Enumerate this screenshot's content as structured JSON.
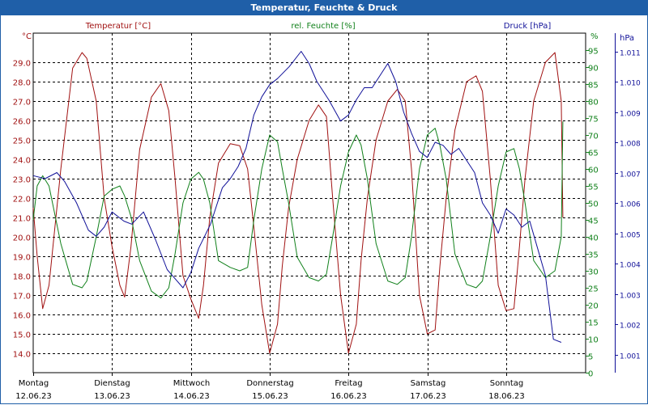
{
  "window": {
    "title": "Temperatur, Feuchte & Druck"
  },
  "colors": {
    "title_bar": "#1f5fa8",
    "temperature": "#a01010",
    "humidity": "#10801a",
    "pressure": "#101098",
    "grid": "#000000"
  },
  "chart_data": {
    "type": "line",
    "title": "Temperatur, Feuchte & Druck",
    "grid": true,
    "x_axis": {
      "start_day": "12.06.23",
      "days": [
        {
          "name": "Montag",
          "date": "12.06.23"
        },
        {
          "name": "Dienstag",
          "date": "13.06.23"
        },
        {
          "name": "Mittwoch",
          "date": "14.06.23"
        },
        {
          "name": "Donnerstag",
          "date": "15.06.23"
        },
        {
          "name": "Freitag",
          "date": "16.06.23"
        },
        {
          "name": "Samstag",
          "date": "17.06.23"
        },
        {
          "name": "Sonntag",
          "date": "18.06.23"
        }
      ]
    },
    "y_axes": {
      "temperature": {
        "label": "Temperatur [°C]",
        "unit": "°C",
        "range": [
          13.0,
          30.5
        ],
        "ticks": [
          "14.0",
          "15.0",
          "16.0",
          "17.0",
          "18.0",
          "19.0",
          "20.0",
          "21.0",
          "22.0",
          "23.0",
          "24.0",
          "25.0",
          "26.0",
          "27.0",
          "28.0",
          "29.0"
        ]
      },
      "humidity": {
        "label": "rel. Feuchte [%]",
        "unit": "%",
        "range": [
          0,
          100
        ],
        "ticks": [
          "0",
          "5",
          "10",
          "15",
          "20",
          "25",
          "30",
          "35",
          "40",
          "45",
          "50",
          "55",
          "60",
          "65",
          "70",
          "75",
          "80",
          "85",
          "90",
          "95"
        ]
      },
      "pressure": {
        "label": "Druck [hPa]",
        "unit": "hPa",
        "range": [
          1000.4,
          1011.6
        ],
        "ticks": [
          "1.001",
          "1.002",
          "1.003",
          "1.004",
          "1.005",
          "1.006",
          "1.007",
          "1.008",
          "1.009",
          "1.010",
          "1.011"
        ]
      }
    },
    "series": [
      {
        "name": "Temperatur [°C]",
        "axis": "temperature",
        "x_days": [
          0,
          0.05,
          0.12,
          0.2,
          0.35,
          0.5,
          0.62,
          0.68,
          0.8,
          0.9,
          1,
          1.1,
          1.16,
          1.24,
          1.35,
          1.5,
          1.62,
          1.72,
          1.8,
          1.9,
          2,
          2.1,
          2.16,
          2.24,
          2.35,
          2.5,
          2.62,
          2.72,
          2.8,
          2.9,
          3,
          3.1,
          3.16,
          3.24,
          3.35,
          3.5,
          3.62,
          3.72,
          3.8,
          3.9,
          4,
          4.1,
          4.16,
          4.24,
          4.35,
          4.5,
          4.62,
          4.72,
          4.8,
          4.9,
          5,
          5.1,
          5.16,
          5.24,
          5.35,
          5.5,
          5.62,
          5.7,
          5.8,
          5.9,
          6,
          6.1,
          6.17,
          6.24,
          6.35,
          6.5,
          6.62,
          6.7,
          6.72
        ],
        "values": [
          21.5,
          19.0,
          16.3,
          17.5,
          23.5,
          28.7,
          29.5,
          29.2,
          27.0,
          22.0,
          19.5,
          17.5,
          16.9,
          19.5,
          24.5,
          27.2,
          27.9,
          26.5,
          23.0,
          18.0,
          16.8,
          15.8,
          17.5,
          21.0,
          23.8,
          24.8,
          24.7,
          23.5,
          20.5,
          16.5,
          14.0,
          15.5,
          18.5,
          21.5,
          24.0,
          26.0,
          26.8,
          26.2,
          22.0,
          17.0,
          14.0,
          15.5,
          18.8,
          22.0,
          25.0,
          27.0,
          27.6,
          27.0,
          23.5,
          17.0,
          15.0,
          15.2,
          18.5,
          22.0,
          25.5,
          28.0,
          28.3,
          27.5,
          23.0,
          17.5,
          16.2,
          16.3,
          19.5,
          23.0,
          27.0,
          29.0,
          29.5,
          27.0,
          21.0
        ]
      },
      {
        "name": "rel. Feuchte [%]",
        "axis": "humidity",
        "x_days": [
          0,
          0.05,
          0.12,
          0.2,
          0.35,
          0.5,
          0.62,
          0.68,
          0.8,
          0.9,
          1,
          1.1,
          1.16,
          1.24,
          1.35,
          1.5,
          1.62,
          1.72,
          1.8,
          1.9,
          2,
          2.1,
          2.16,
          2.24,
          2.35,
          2.5,
          2.62,
          2.72,
          2.8,
          2.9,
          3,
          3.1,
          3.16,
          3.24,
          3.35,
          3.5,
          3.62,
          3.72,
          3.8,
          3.9,
          4,
          4.1,
          4.16,
          4.24,
          4.35,
          4.5,
          4.62,
          4.72,
          4.8,
          4.9,
          5,
          5.1,
          5.16,
          5.24,
          5.35,
          5.5,
          5.62,
          5.7,
          5.8,
          5.9,
          6,
          6.1,
          6.17,
          6.24,
          6.35,
          6.5,
          6.62,
          6.7,
          6.72
        ],
        "values": [
          45,
          55,
          58,
          55,
          38,
          26,
          25,
          27,
          40,
          52,
          54,
          55,
          52,
          46,
          33,
          24,
          22,
          25,
          35,
          50,
          57,
          59,
          57,
          50,
          33,
          31,
          30,
          31,
          45,
          60,
          70,
          68,
          60,
          50,
          34,
          28,
          27,
          29,
          40,
          55,
          65,
          70,
          67,
          57,
          38,
          27,
          26,
          28,
          40,
          60,
          70,
          72,
          67,
          57,
          35,
          26,
          25,
          27,
          40,
          55,
          65,
          66,
          60,
          50,
          33,
          28,
          30,
          40,
          74
        ]
      },
      {
        "name": "Druck [hPa]",
        "axis": "pressure",
        "x_days": [
          0,
          0.15,
          0.3,
          0.4,
          0.55,
          0.7,
          0.8,
          0.9,
          1,
          1.15,
          1.25,
          1.4,
          1.55,
          1.7,
          1.8,
          1.9,
          2,
          2.1,
          2.25,
          2.4,
          2.5,
          2.6,
          2.7,
          2.8,
          2.9,
          3,
          3.1,
          3.25,
          3.4,
          3.5,
          3.6,
          3.75,
          3.9,
          4,
          4.1,
          4.2,
          4.3,
          4.4,
          4.5,
          4.6,
          4.7,
          4.8,
          4.9,
          5,
          5.1,
          5.2,
          5.3,
          5.4,
          5.5,
          5.6,
          5.7,
          5.8,
          5.9,
          6,
          6.1,
          6.2,
          6.3,
          6.4,
          6.5,
          6.6,
          6.7
        ],
        "values": [
          1006.9,
          1006.8,
          1007.0,
          1006.7,
          1006.0,
          1005.1,
          1004.9,
          1005.2,
          1005.7,
          1005.4,
          1005.3,
          1005.7,
          1004.8,
          1003.8,
          1003.5,
          1003.2,
          1003.7,
          1004.5,
          1005.3,
          1006.5,
          1006.8,
          1007.2,
          1007.8,
          1008.9,
          1009.5,
          1009.9,
          1010.1,
          1010.5,
          1011.0,
          1010.6,
          1010.0,
          1009.4,
          1008.7,
          1008.9,
          1009.4,
          1009.8,
          1009.8,
          1010.2,
          1010.6,
          1010.0,
          1009.0,
          1008.3,
          1007.7,
          1007.5,
          1008.0,
          1007.9,
          1007.6,
          1007.8,
          1007.4,
          1007.0,
          1006.0,
          1005.6,
          1005.0,
          1005.8,
          1005.6,
          1005.2,
          1005.4,
          1004.5,
          1003.6,
          1001.5,
          1001.4
        ]
      }
    ]
  }
}
